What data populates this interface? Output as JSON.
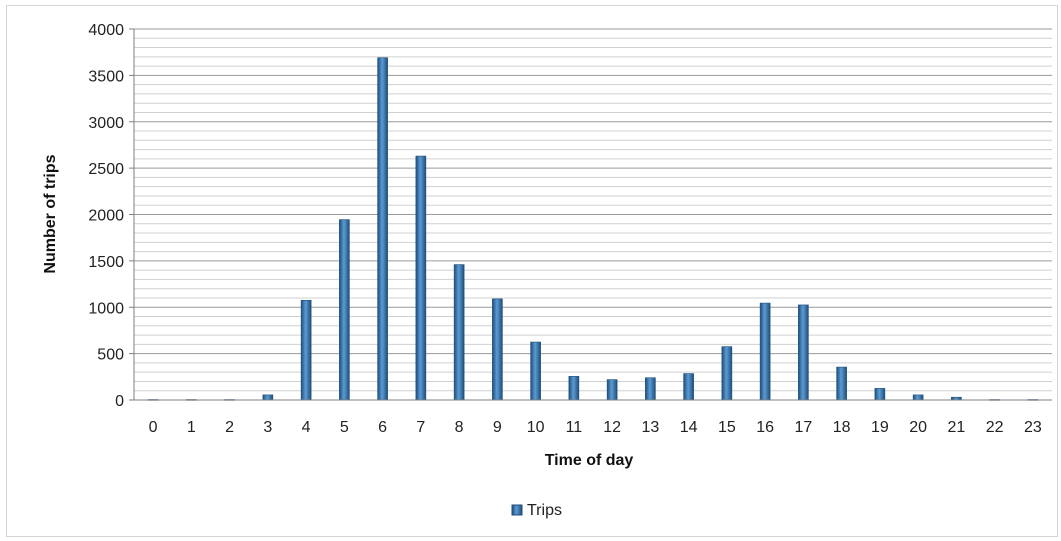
{
  "chart_data": {
    "type": "bar",
    "categories": [
      "0",
      "1",
      "2",
      "3",
      "4",
      "5",
      "6",
      "7",
      "8",
      "9",
      "10",
      "11",
      "12",
      "13",
      "14",
      "15",
      "16",
      "17",
      "18",
      "19",
      "20",
      "21",
      "22",
      "23"
    ],
    "series": [
      {
        "name": "Trips",
        "values": [
          5,
          5,
          5,
          55,
          1075,
          1945,
          3690,
          2630,
          1460,
          1090,
          625,
          255,
          220,
          240,
          285,
          575,
          1045,
          1025,
          355,
          125,
          55,
          30,
          5,
          5
        ],
        "color": "#2e75b6"
      }
    ],
    "xlabel": "Time of day",
    "ylabel": "Number of trips",
    "ylim": [
      0,
      4000
    ],
    "y_ticks": [
      "0",
      "500",
      "1000",
      "1500",
      "2000",
      "2500",
      "3000",
      "3500",
      "4000"
    ],
    "y_tick_values": [
      0,
      500,
      1000,
      1500,
      2000,
      2500,
      3000,
      3500,
      4000
    ],
    "minor_grid_step": 100,
    "grid": true,
    "legend_position": "bottom"
  }
}
